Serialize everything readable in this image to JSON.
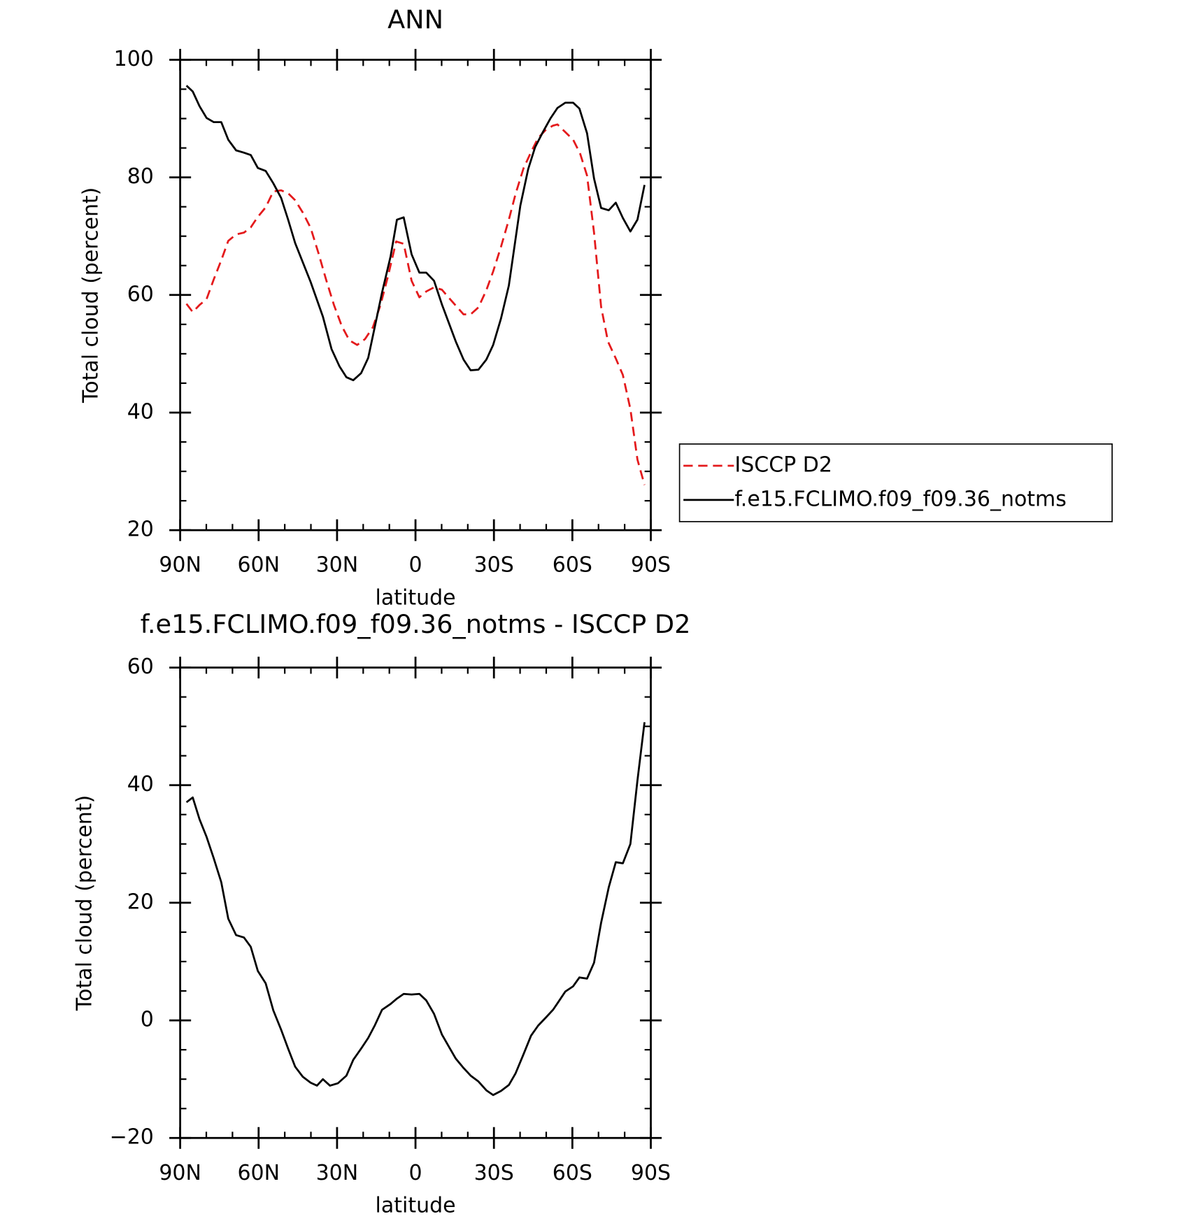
{
  "chart_data": [
    {
      "type": "line",
      "title": "ANN",
      "xlabel": "latitude",
      "ylabel": "Total cloud (percent)",
      "xlim": [
        90,
        -90
      ],
      "ylim": [
        20,
        100
      ],
      "xticks": [
        {
          "value": 90,
          "label": "90N"
        },
        {
          "value": 60,
          "label": "60N"
        },
        {
          "value": 30,
          "label": "30N"
        },
        0,
        {
          "value": -30,
          "label": "30S"
        },
        {
          "value": -60,
          "label": "60S"
        },
        {
          "value": -90,
          "label": "90S"
        }
      ],
      "yticks": [
        20,
        40,
        60,
        80,
        100
      ],
      "series": [
        {
          "name": "ISCCP D2",
          "color": "#e41a1c",
          "dashed": true,
          "x": [
            87.6,
            85.2,
            82.6,
            79.9,
            77.2,
            74.3,
            71.6,
            68.6,
            65.6,
            63.0,
            60.3,
            57.3,
            54.4,
            51.4,
            48.7,
            46.0,
            43.1,
            40.1,
            37.1,
            34.2,
            31.2,
            28.2,
            25.3,
            22.3,
            19.3,
            16.3,
            13.4,
            10.4,
            7.4,
            4.5,
            1.5,
            -1.5,
            -4.1,
            -7.1,
            -10.1,
            -12.8,
            -15.4,
            -18.4,
            -21.1,
            -24.1,
            -27.1,
            -29.7,
            -32.7,
            -35.7,
            -38.3,
            -41.3,
            -44.2,
            -46.9,
            -49.9,
            -52.6,
            -54.3,
            -57.3,
            -60.3,
            -63.0,
            -65.6,
            -68.3,
            -71.0,
            -73.6,
            -76.6,
            -79.3,
            -82.2,
            -84.9,
            -87.6
          ],
          "values": [
            58.5,
            57.1,
            58.3,
            59.3,
            62.6,
            65.9,
            69.2,
            70.3,
            70.6,
            71.5,
            73.3,
            74.9,
            77.6,
            77.8,
            77.3,
            76.1,
            74.0,
            71.4,
            67.1,
            62.6,
            58.3,
            54.7,
            52.3,
            51.5,
            52.5,
            54.5,
            58.3,
            63.4,
            69.1,
            68.7,
            62.4,
            59.6,
            60.6,
            61.3,
            60.9,
            59.5,
            58.2,
            56.7,
            56.7,
            57.9,
            60.8,
            64.0,
            68.2,
            72.8,
            77.2,
            81.5,
            84.3,
            86.7,
            88.1,
            88.8,
            89.0,
            87.7,
            86.4,
            84.0,
            80.3,
            70.6,
            58.0,
            52.1,
            49.2,
            46.4,
            40.6,
            32.0,
            27.7
          ]
        },
        {
          "name": "f.e15.FCLIMO.f09_f09.36_notms",
          "color": "#000000",
          "dashed": false,
          "x": [
            87.6,
            85.2,
            82.6,
            79.9,
            77.2,
            74.3,
            71.6,
            68.6,
            65.6,
            63.0,
            60.3,
            57.3,
            54.4,
            51.4,
            48.7,
            46.0,
            40.1,
            35.4,
            32.1,
            29.1,
            26.4,
            23.8,
            20.8,
            18.1,
            15.5,
            12.8,
            9.5,
            7.1,
            4.5,
            1.5,
            -1.5,
            -4.1,
            -7.1,
            -10.1,
            -15.4,
            -18.4,
            -21.1,
            -24.1,
            -27.1,
            -29.7,
            -32.7,
            -35.7,
            -40.1,
            -43.1,
            -45.7,
            -48.7,
            -51.7,
            -54.3,
            -57.3,
            -60.3,
            -62.7,
            -65.6,
            -68.3,
            -71.0,
            -73.9,
            -76.6,
            -79.3,
            -82.2,
            -84.9,
            -87.6
          ],
          "values": [
            95.6,
            94.6,
            92.1,
            90.1,
            89.4,
            89.4,
            86.4,
            84.6,
            84.2,
            83.8,
            81.6,
            81.1,
            79.0,
            76.5,
            72.8,
            68.8,
            62.2,
            56.3,
            50.8,
            47.9,
            46.0,
            45.5,
            46.7,
            49.3,
            54.7,
            60.4,
            66.6,
            72.8,
            73.2,
            66.9,
            63.8,
            63.8,
            62.4,
            58.4,
            52.1,
            49.0,
            47.2,
            47.3,
            49.0,
            51.5,
            56.0,
            61.6,
            75.2,
            81.4,
            85.1,
            87.7,
            90.1,
            91.8,
            92.7,
            92.7,
            91.7,
            87.5,
            79.8,
            74.8,
            74.4,
            75.7,
            73.1,
            70.8,
            72.8,
            78.7
          ]
        }
      ]
    },
    {
      "type": "line",
      "title": "f.e15.FCLIMO.f09_f09.36_notms - ISCCP D2",
      "xlabel": "latitude",
      "ylabel": "Total cloud (percent)",
      "xlim": [
        90,
        -90
      ],
      "ylim": [
        -20,
        60
      ],
      "xticks": [
        {
          "value": 90,
          "label": "90N"
        },
        {
          "value": 60,
          "label": "60N"
        },
        {
          "value": 30,
          "label": "30N"
        },
        0,
        {
          "value": -30,
          "label": "30S"
        },
        {
          "value": -60,
          "label": "60S"
        },
        {
          "value": -90,
          "label": "90S"
        }
      ],
      "yticks": [
        {
          "value": -20,
          "label": "−20"
        },
        0,
        20,
        40,
        60
      ],
      "color": "#000000",
      "x": [
        87.6,
        85.2,
        82.6,
        79.9,
        77.2,
        74.3,
        71.6,
        68.6,
        65.6,
        63.0,
        60.3,
        57.3,
        54.4,
        51.4,
        48.7,
        46.0,
        43.1,
        40.1,
        37.7,
        35.4,
        32.7,
        29.7,
        26.4,
        23.8,
        20.8,
        18.1,
        15.5,
        12.8,
        9.5,
        7.1,
        4.5,
        1.5,
        -1.5,
        -4.1,
        -7.1,
        -10.1,
        -12.8,
        -15.4,
        -18.4,
        -21.1,
        -24.1,
        -27.1,
        -29.7,
        -32.7,
        -35.7,
        -38.3,
        -41.3,
        -44.2,
        -46.9,
        -49.9,
        -52.6,
        -54.3,
        -57.3,
        -60.3,
        -62.7,
        -65.6,
        -68.3,
        -71.0,
        -73.9,
        -76.6,
        -79.3,
        -82.2,
        -84.9,
        -87.6
      ],
      "values": [
        37.1,
        37.9,
        34.2,
        31.2,
        27.6,
        23.5,
        17.3,
        14.5,
        14.1,
        12.5,
        8.4,
        6.3,
        1.7,
        -1.6,
        -4.8,
        -7.9,
        -9.6,
        -10.6,
        -11.1,
        -10.0,
        -11.1,
        -10.7,
        -9.4,
        -6.7,
        -4.8,
        -3.0,
        -0.8,
        1.8,
        2.8,
        3.7,
        4.5,
        4.4,
        4.5,
        3.4,
        1.1,
        -2.4,
        -4.5,
        -6.5,
        -8.1,
        -9.4,
        -10.4,
        -11.9,
        -12.7,
        -12.0,
        -11.0,
        -9.0,
        -5.8,
        -2.6,
        -0.9,
        0.5,
        1.8,
        2.9,
        4.9,
        5.8,
        7.3,
        7.1,
        9.8,
        16.6,
        22.6,
        26.9,
        26.7,
        30.0,
        40.8,
        50.7
      ]
    }
  ]
}
